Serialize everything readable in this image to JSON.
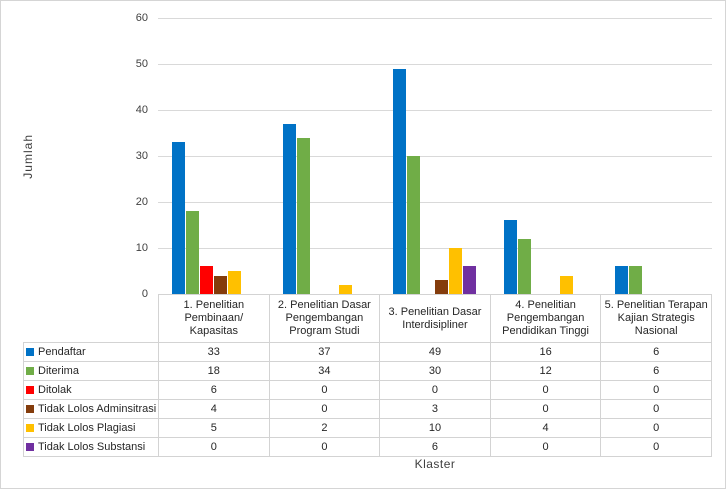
{
  "chart_data": {
    "type": "bar",
    "title": "",
    "xlabel": "Klaster",
    "ylabel": "Jumlah",
    "ylim": [
      0,
      60
    ],
    "yticks": [
      0,
      10,
      20,
      30,
      40,
      50,
      60
    ],
    "grid": true,
    "legend_position": "data-table-below",
    "categories": [
      "1. Penelitian Pembinaan/ Kapasitas",
      "2. Penelitian Dasar Pengembangan Program Studi",
      "3. Penelitian Dasar Interdisipliner",
      "4. Penelitian Pengembangan Pendidikan Tinggi",
      "5. Penelitian Terapan Kajian Strategis Nasional"
    ],
    "series": [
      {
        "name": "Pendaftar",
        "color": "#0072C6",
        "values": [
          33,
          37,
          49,
          16,
          6
        ]
      },
      {
        "name": "Diterima",
        "color": "#70AD47",
        "values": [
          18,
          34,
          30,
          12,
          6
        ]
      },
      {
        "name": "Ditolak",
        "color": "#FF0000",
        "values": [
          6,
          0,
          0,
          0,
          0
        ]
      },
      {
        "name": "Tidak Lolos Adminsitrasi",
        "color": "#843C0C",
        "values": [
          4,
          0,
          3,
          0,
          0
        ]
      },
      {
        "name": "Tidak Lolos Plagiasi",
        "color": "#FFC000",
        "values": [
          5,
          2,
          10,
          4,
          0
        ]
      },
      {
        "name": "Tidak Lolos Substansi",
        "color": "#7030A0",
        "values": [
          0,
          0,
          6,
          0,
          0
        ]
      }
    ]
  },
  "colors": {
    "gridline": "#d9d9d9",
    "table_border": "#d3d3d3",
    "axis_text": "#404040"
  }
}
